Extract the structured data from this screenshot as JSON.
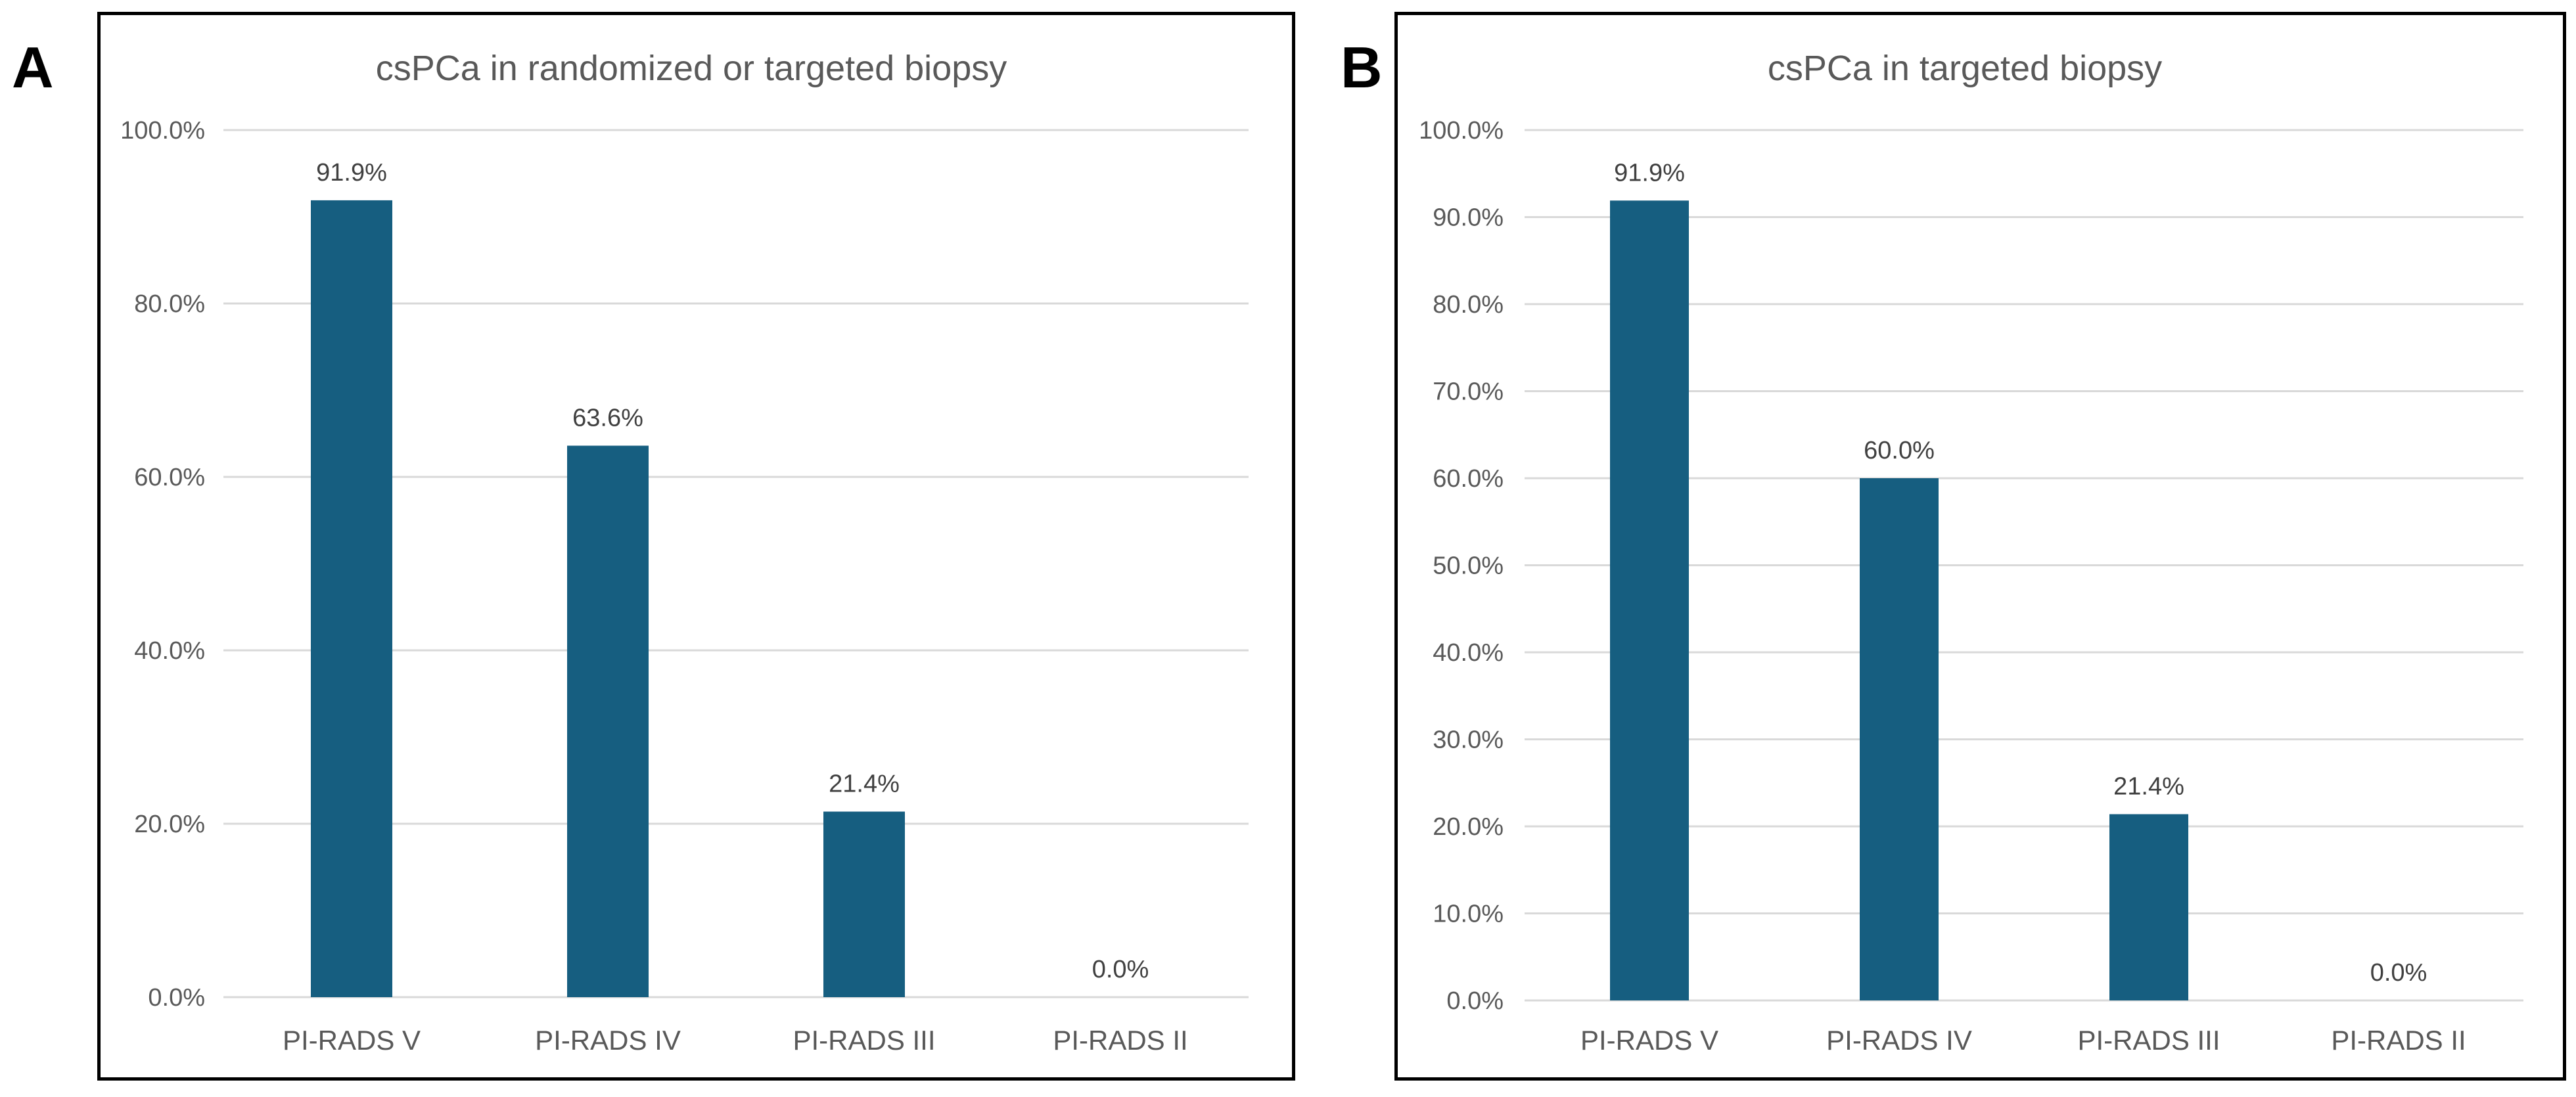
{
  "panels": [
    {
      "letter": "A"
    },
    {
      "letter": "B"
    }
  ],
  "chart_data": [
    {
      "type": "bar",
      "title": "csPCa in randomized or targeted biopsy",
      "categories": [
        "PI-RADS V",
        "PI-RADS IV",
        "PI-RADS III",
        "PI-RADS II"
      ],
      "values": [
        91.9,
        63.6,
        21.4,
        0.0
      ],
      "data_labels": [
        "91.9%",
        "63.6%",
        "21.4%",
        "0.0%"
      ],
      "ylim": [
        0,
        100
      ],
      "yticks": [
        0,
        20,
        40,
        60,
        80,
        100
      ],
      "ytick_labels": [
        "0.0%",
        "20.0%",
        "40.0%",
        "60.0%",
        "80.0%",
        "100.0%"
      ],
      "xlabel": "",
      "ylabel": "",
      "grid": true,
      "legend": "none"
    },
    {
      "type": "bar",
      "title": "csPCa in targeted biopsy",
      "categories": [
        "PI-RADS V",
        "PI-RADS IV",
        "PI-RADS III",
        "PI-RADS II"
      ],
      "values": [
        91.9,
        60.0,
        21.4,
        0.0
      ],
      "data_labels": [
        "91.9%",
        "60.0%",
        "21.4%",
        "0.0%"
      ],
      "ylim": [
        0,
        100
      ],
      "yticks": [
        0,
        10,
        20,
        30,
        40,
        50,
        60,
        70,
        80,
        90,
        100
      ],
      "ytick_labels": [
        "0.0%",
        "10.0%",
        "20.0%",
        "30.0%",
        "40.0%",
        "50.0%",
        "60.0%",
        "70.0%",
        "80.0%",
        "90.0%",
        "100.0%"
      ],
      "xlabel": "",
      "ylabel": "",
      "grid": true,
      "legend": "none"
    }
  ],
  "colors": {
    "bar": "#165e80",
    "grid": "#d9d9d9",
    "title": "#595959",
    "tick": "#595959",
    "label": "#404040"
  }
}
